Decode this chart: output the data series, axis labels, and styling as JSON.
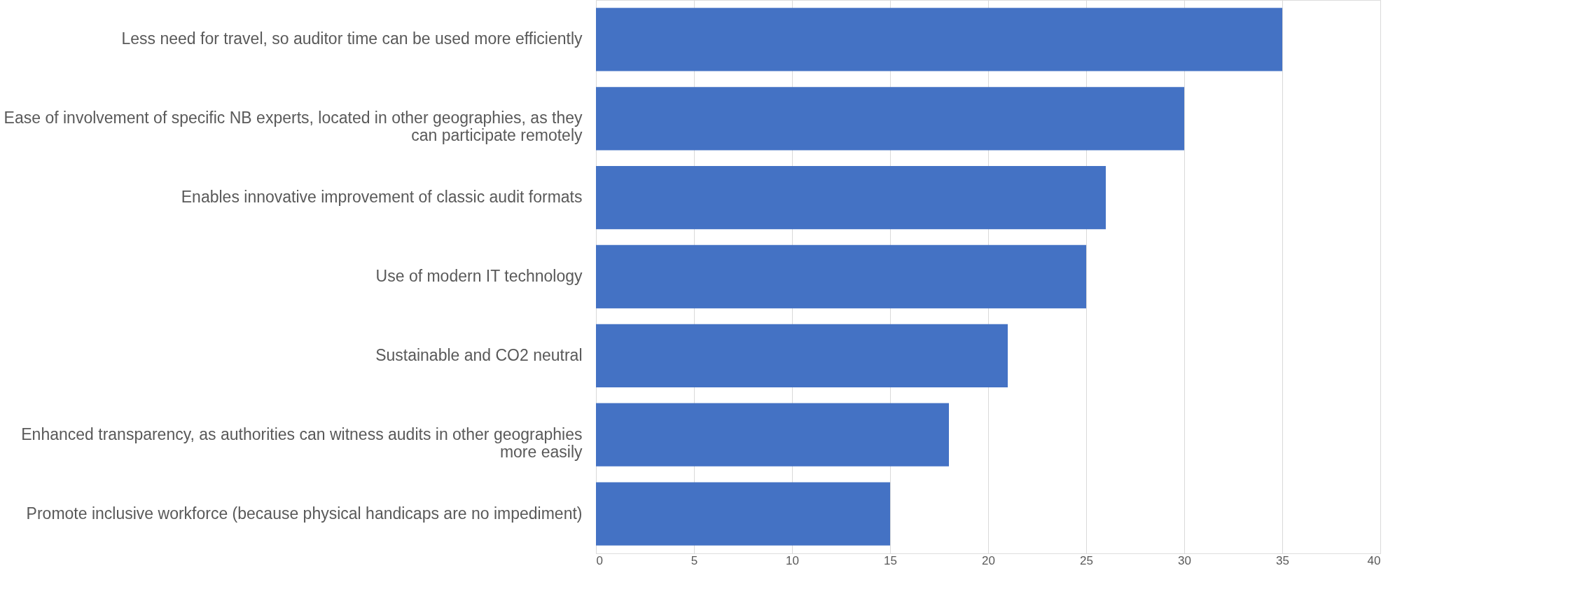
{
  "chart_data": {
    "type": "bar",
    "orientation": "horizontal",
    "categories": [
      "Less need for travel, so auditor time can be used more efficiently",
      "Ease of involvement of specific NB experts, located in other geographies, as they can participate remotely",
      "Enables innovative improvement of classic audit formats",
      "Use of modern IT technology",
      "Sustainable and CO2 neutral",
      "Enhanced transparency, as authorities can witness audits in other geographies more easily",
      "Promote inclusive workforce (because physical handicaps are no impediment)"
    ],
    "values": [
      35,
      30,
      26,
      25,
      21,
      18,
      15
    ],
    "color": "#4472c4",
    "xlim": [
      0,
      40
    ],
    "xticks": [
      0,
      5,
      10,
      15,
      20,
      25,
      30,
      35,
      40
    ],
    "grid": "x"
  }
}
